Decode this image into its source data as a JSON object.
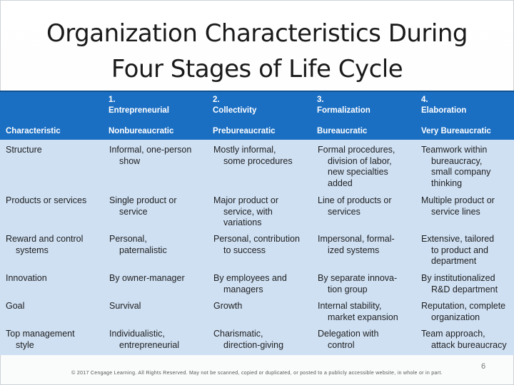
{
  "title_line1": "Organization Characteristics During",
  "title_line2": "Four Stages of Life Cycle",
  "table": {
    "stage_headers": [
      {
        "num": "1.",
        "name": "Entrepreneurial"
      },
      {
        "num": "2.",
        "name": "Collectivity"
      },
      {
        "num": "3.",
        "name": "Formalization"
      },
      {
        "num": "4.",
        "name": "Elaboration"
      }
    ],
    "characteristic_label": "Characteristic",
    "stage_types": [
      "Nonbureaucratic",
      "Prebureaucratic",
      "Bureaucratic",
      "Very Bureaucratic"
    ],
    "rows": [
      {
        "characteristic": [
          "Structure"
        ],
        "cells": [
          [
            "Informal, one-person",
            "show"
          ],
          [
            "Mostly informal,",
            "some procedures"
          ],
          [
            "Formal procedures,",
            "division of labor,",
            "new specialties",
            "added"
          ],
          [
            "Teamwork within",
            "bureaucracy,",
            "small company",
            "thinking"
          ]
        ]
      },
      {
        "characteristic": [
          "Products or services"
        ],
        "cells": [
          [
            "Single product or",
            "service"
          ],
          [
            "Major product or",
            "service, with",
            "variations"
          ],
          [
            "Line of products or",
            "services"
          ],
          [
            "Multiple product or",
            "service lines"
          ]
        ]
      },
      {
        "characteristic": [
          "Reward and control",
          "systems"
        ],
        "cells": [
          [
            "Personal,",
            "paternalistic"
          ],
          [
            "Personal, contribution",
            "to success"
          ],
          [
            "Impersonal, formal-",
            "ized systems"
          ],
          [
            "Extensive, tailored",
            "to product and",
            "department"
          ]
        ]
      },
      {
        "characteristic": [
          "Innovation"
        ],
        "cells": [
          [
            "By owner-manager"
          ],
          [
            "By employees and",
            "managers"
          ],
          [
            "By separate innova-",
            "tion group"
          ],
          [
            "By institutionalized",
            "R&D department"
          ]
        ]
      },
      {
        "characteristic": [
          "Goal"
        ],
        "cells": [
          [
            "Survival"
          ],
          [
            "Growth"
          ],
          [
            "Internal stability,",
            "market expansion"
          ],
          [
            "Reputation, complete",
            "organization"
          ]
        ]
      },
      {
        "characteristic": [
          "Top management",
          "style"
        ],
        "cells": [
          [
            "Individualistic,",
            "entrepreneurial"
          ],
          [
            "Charismatic,",
            "direction-giving"
          ],
          [
            "Delegation with",
            "control"
          ],
          [
            "Team approach,",
            "attack bureaucracy"
          ]
        ]
      }
    ]
  },
  "copyright": "© 2017 Cengage Learning. All Rights Reserved. May not be scanned, copied or duplicated, or posted to a publicly accessible website, in whole or in part.",
  "page_number": "6"
}
